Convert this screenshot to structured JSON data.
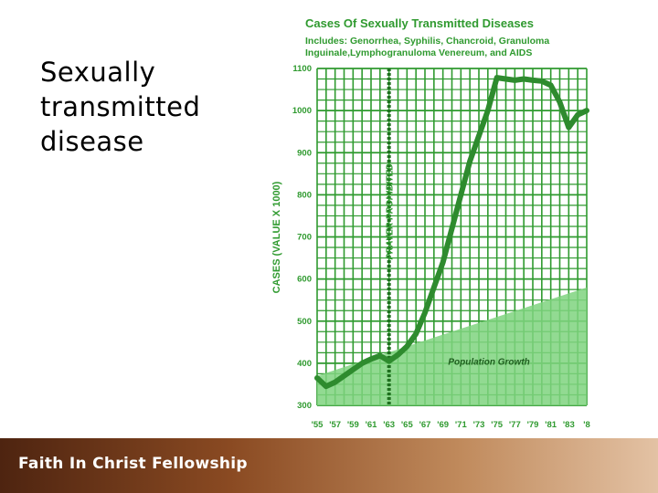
{
  "slide": {
    "title": "Sexually\ntransmitted\ndisease",
    "footer": "Faith In Christ Fellowship"
  },
  "colors": {
    "line": "#2e8b2e",
    "grid": "#2f9a2f",
    "area": "#7fd47f",
    "accent": "#2f9a2f"
  },
  "chart_data": {
    "type": "line",
    "title": "Cases Of Sexually Transmitted Diseases",
    "subtitle_lines": [
      "Includes: Genorrhea, Syphilis, Chancroid, Granuloma",
      "Inguinale,Lymphogranuloma Venereum, and AIDS"
    ],
    "ylabel": "CASES  (VALUE  X  1000)",
    "xlabel": "",
    "x_ticks": [
      "'55",
      "'57",
      "'59",
      "'61",
      "'63",
      "'65",
      "'67",
      "'69",
      "'71",
      "'73",
      "'75",
      "'77",
      "'79",
      "'81",
      "'83",
      "'8"
    ],
    "y_ticks": [
      300,
      400,
      500,
      600,
      700,
      800,
      900,
      1000,
      1100
    ],
    "ylim": [
      300,
      1100
    ],
    "xlim": [
      1955,
      1985
    ],
    "grid": true,
    "annotations": [
      {
        "text": "PRAYER  PROHIBITED",
        "x": 1963
      },
      {
        "text": "Population  Growth",
        "x": 1971
      }
    ],
    "series": [
      {
        "x": [
          1955,
          1956,
          1957,
          1958,
          1959,
          1960,
          1961,
          1962,
          1963,
          1964,
          1965,
          1966,
          1967,
          1968,
          1969,
          1970,
          1971,
          1972,
          1973,
          1974,
          1975,
          1976,
          1977,
          1978,
          1979,
          1980,
          1981,
          1982,
          1983,
          1984,
          1985
        ],
        "values": [
          365,
          345,
          355,
          370,
          385,
          400,
          410,
          418,
          405,
          420,
          440,
          470,
          520,
          580,
          640,
          720,
          800,
          880,
          940,
          1000,
          1078,
          1075,
          1072,
          1075,
          1072,
          1070,
          1060,
          1020,
          960,
          990,
          1000
        ]
      },
      {
        "name": "Population  Growth",
        "type": "area",
        "x": [
          1955,
          1985
        ],
        "values": [
          370,
          580
        ]
      }
    ]
  }
}
